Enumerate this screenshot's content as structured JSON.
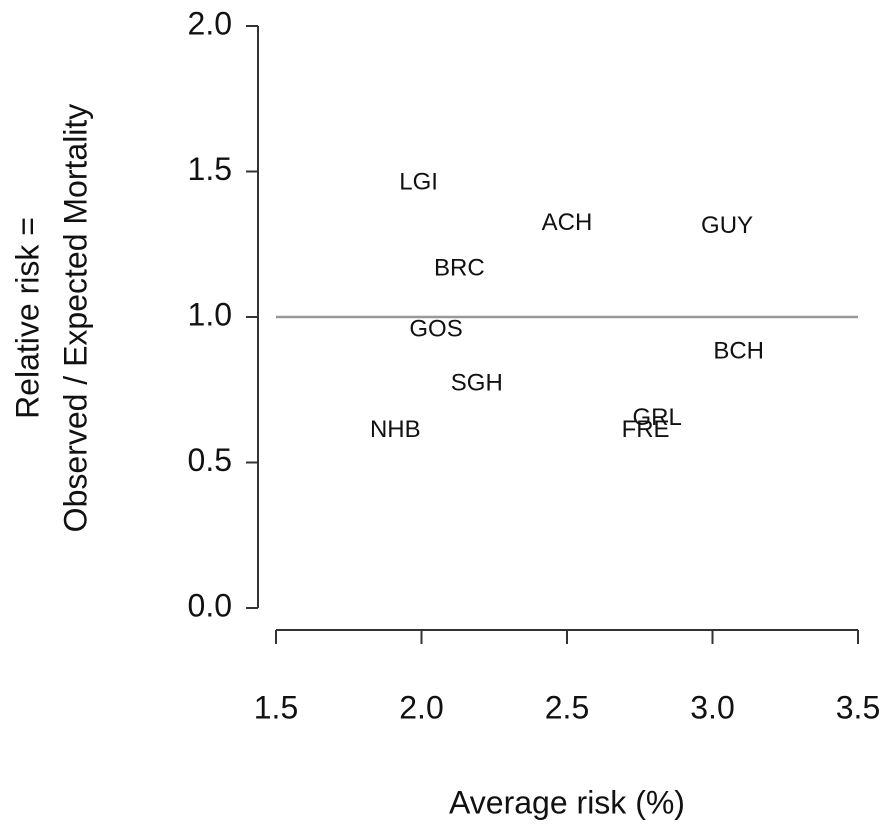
{
  "chart_data": {
    "type": "scatter",
    "xlabel": "Average risk (%)",
    "ylabel": [
      "Relative risk =",
      "Observed / Expected Mortality"
    ],
    "labels": [
      "LGI",
      "ACH",
      "GUY",
      "BRC",
      "GOS",
      "BCH",
      "SGH",
      "NHB",
      "GRL",
      "FRE"
    ],
    "x": [
      1.99,
      2.5,
      3.05,
      2.13,
      2.05,
      3.09,
      2.19,
      1.91,
      2.81,
      2.77
    ],
    "values": [
      1.46,
      1.32,
      1.31,
      1.165,
      0.955,
      0.88,
      0.77,
      0.61,
      0.65,
      0.61
    ],
    "color": "#000000",
    "hline": 1,
    "hline_color": "#999999",
    "xlim": [
      1.5,
      3.5
    ],
    "xticks": [
      1.5,
      {
        "value": 2,
        "label": "2.0"
      },
      2.5,
      {
        "value": 3,
        "label": "3.0"
      },
      3.5
    ],
    "ylim": [
      0,
      2
    ],
    "yticks": [
      {
        "value": 0,
        "label": "0.0"
      },
      0.5,
      {
        "value": 1,
        "label": "1.0"
      },
      1.5,
      {
        "value": 2,
        "label": "2.0"
      }
    ]
  }
}
